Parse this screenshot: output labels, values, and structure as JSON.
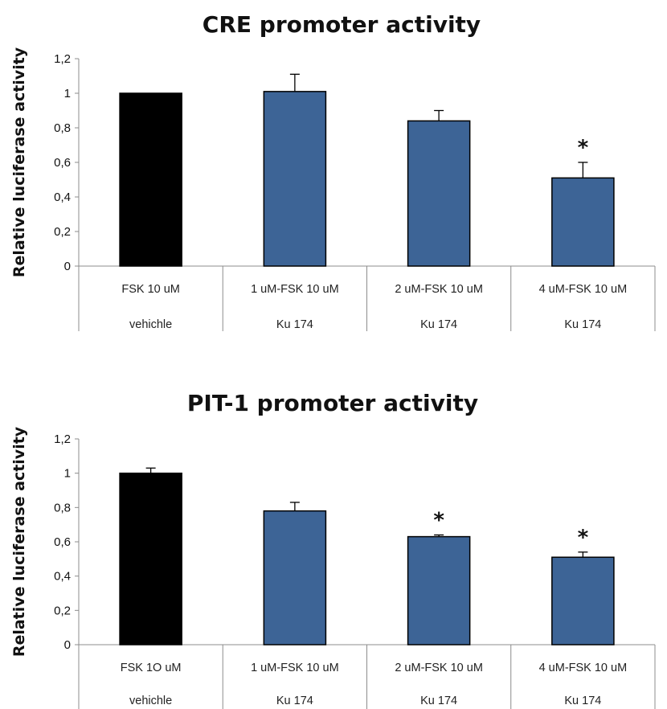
{
  "chart_data": [
    {
      "type": "bar",
      "title": "CRE promoter activity",
      "ylabel": "Relative luciferase activity",
      "ylim": [
        0,
        1.2
      ],
      "yticks": [
        "0",
        "0,2",
        "0,4",
        "0,6",
        "0,8",
        "1",
        "1,2"
      ],
      "categories": [
        [
          "FSK 10 uM",
          "vehichle"
        ],
        [
          "1 uM-FSK 10 uM",
          "Ku 174"
        ],
        [
          "2 uM-FSK 10 uM",
          "Ku 174"
        ],
        [
          "4 uM-FSK 10 uM",
          "Ku 174"
        ]
      ],
      "values": [
        1.0,
        1.01,
        0.84,
        0.51
      ],
      "errors": [
        0,
        0.1,
        0.06,
        0.09
      ],
      "significance": [
        "",
        "",
        "",
        "*"
      ],
      "colors": [
        "#000000",
        "#3d6496",
        "#3d6496",
        "#3d6496"
      ],
      "grid": false
    },
    {
      "type": "bar",
      "title": "PIT-1 promoter activity",
      "ylabel": "Relative luciferase activity",
      "ylim": [
        0,
        1.2
      ],
      "yticks": [
        "0",
        "0,2",
        "0,4",
        "0,6",
        "0,8",
        "1",
        "1,2"
      ],
      "categories": [
        [
          "FSK 1O uM",
          "vehichle"
        ],
        [
          "1 uM-FSK 10 uM",
          "Ku 174"
        ],
        [
          "2 uM-FSK 10 uM",
          "Ku 174"
        ],
        [
          "4 uM-FSK 10 uM",
          "Ku 174"
        ]
      ],
      "values": [
        1.0,
        0.78,
        0.63,
        0.51
      ],
      "errors": [
        0.03,
        0.05,
        0.01,
        0.03
      ],
      "significance": [
        "",
        "",
        "*",
        "*"
      ],
      "colors": [
        "#000000",
        "#3d6496",
        "#3d6496",
        "#3d6496"
      ],
      "grid": false
    }
  ]
}
